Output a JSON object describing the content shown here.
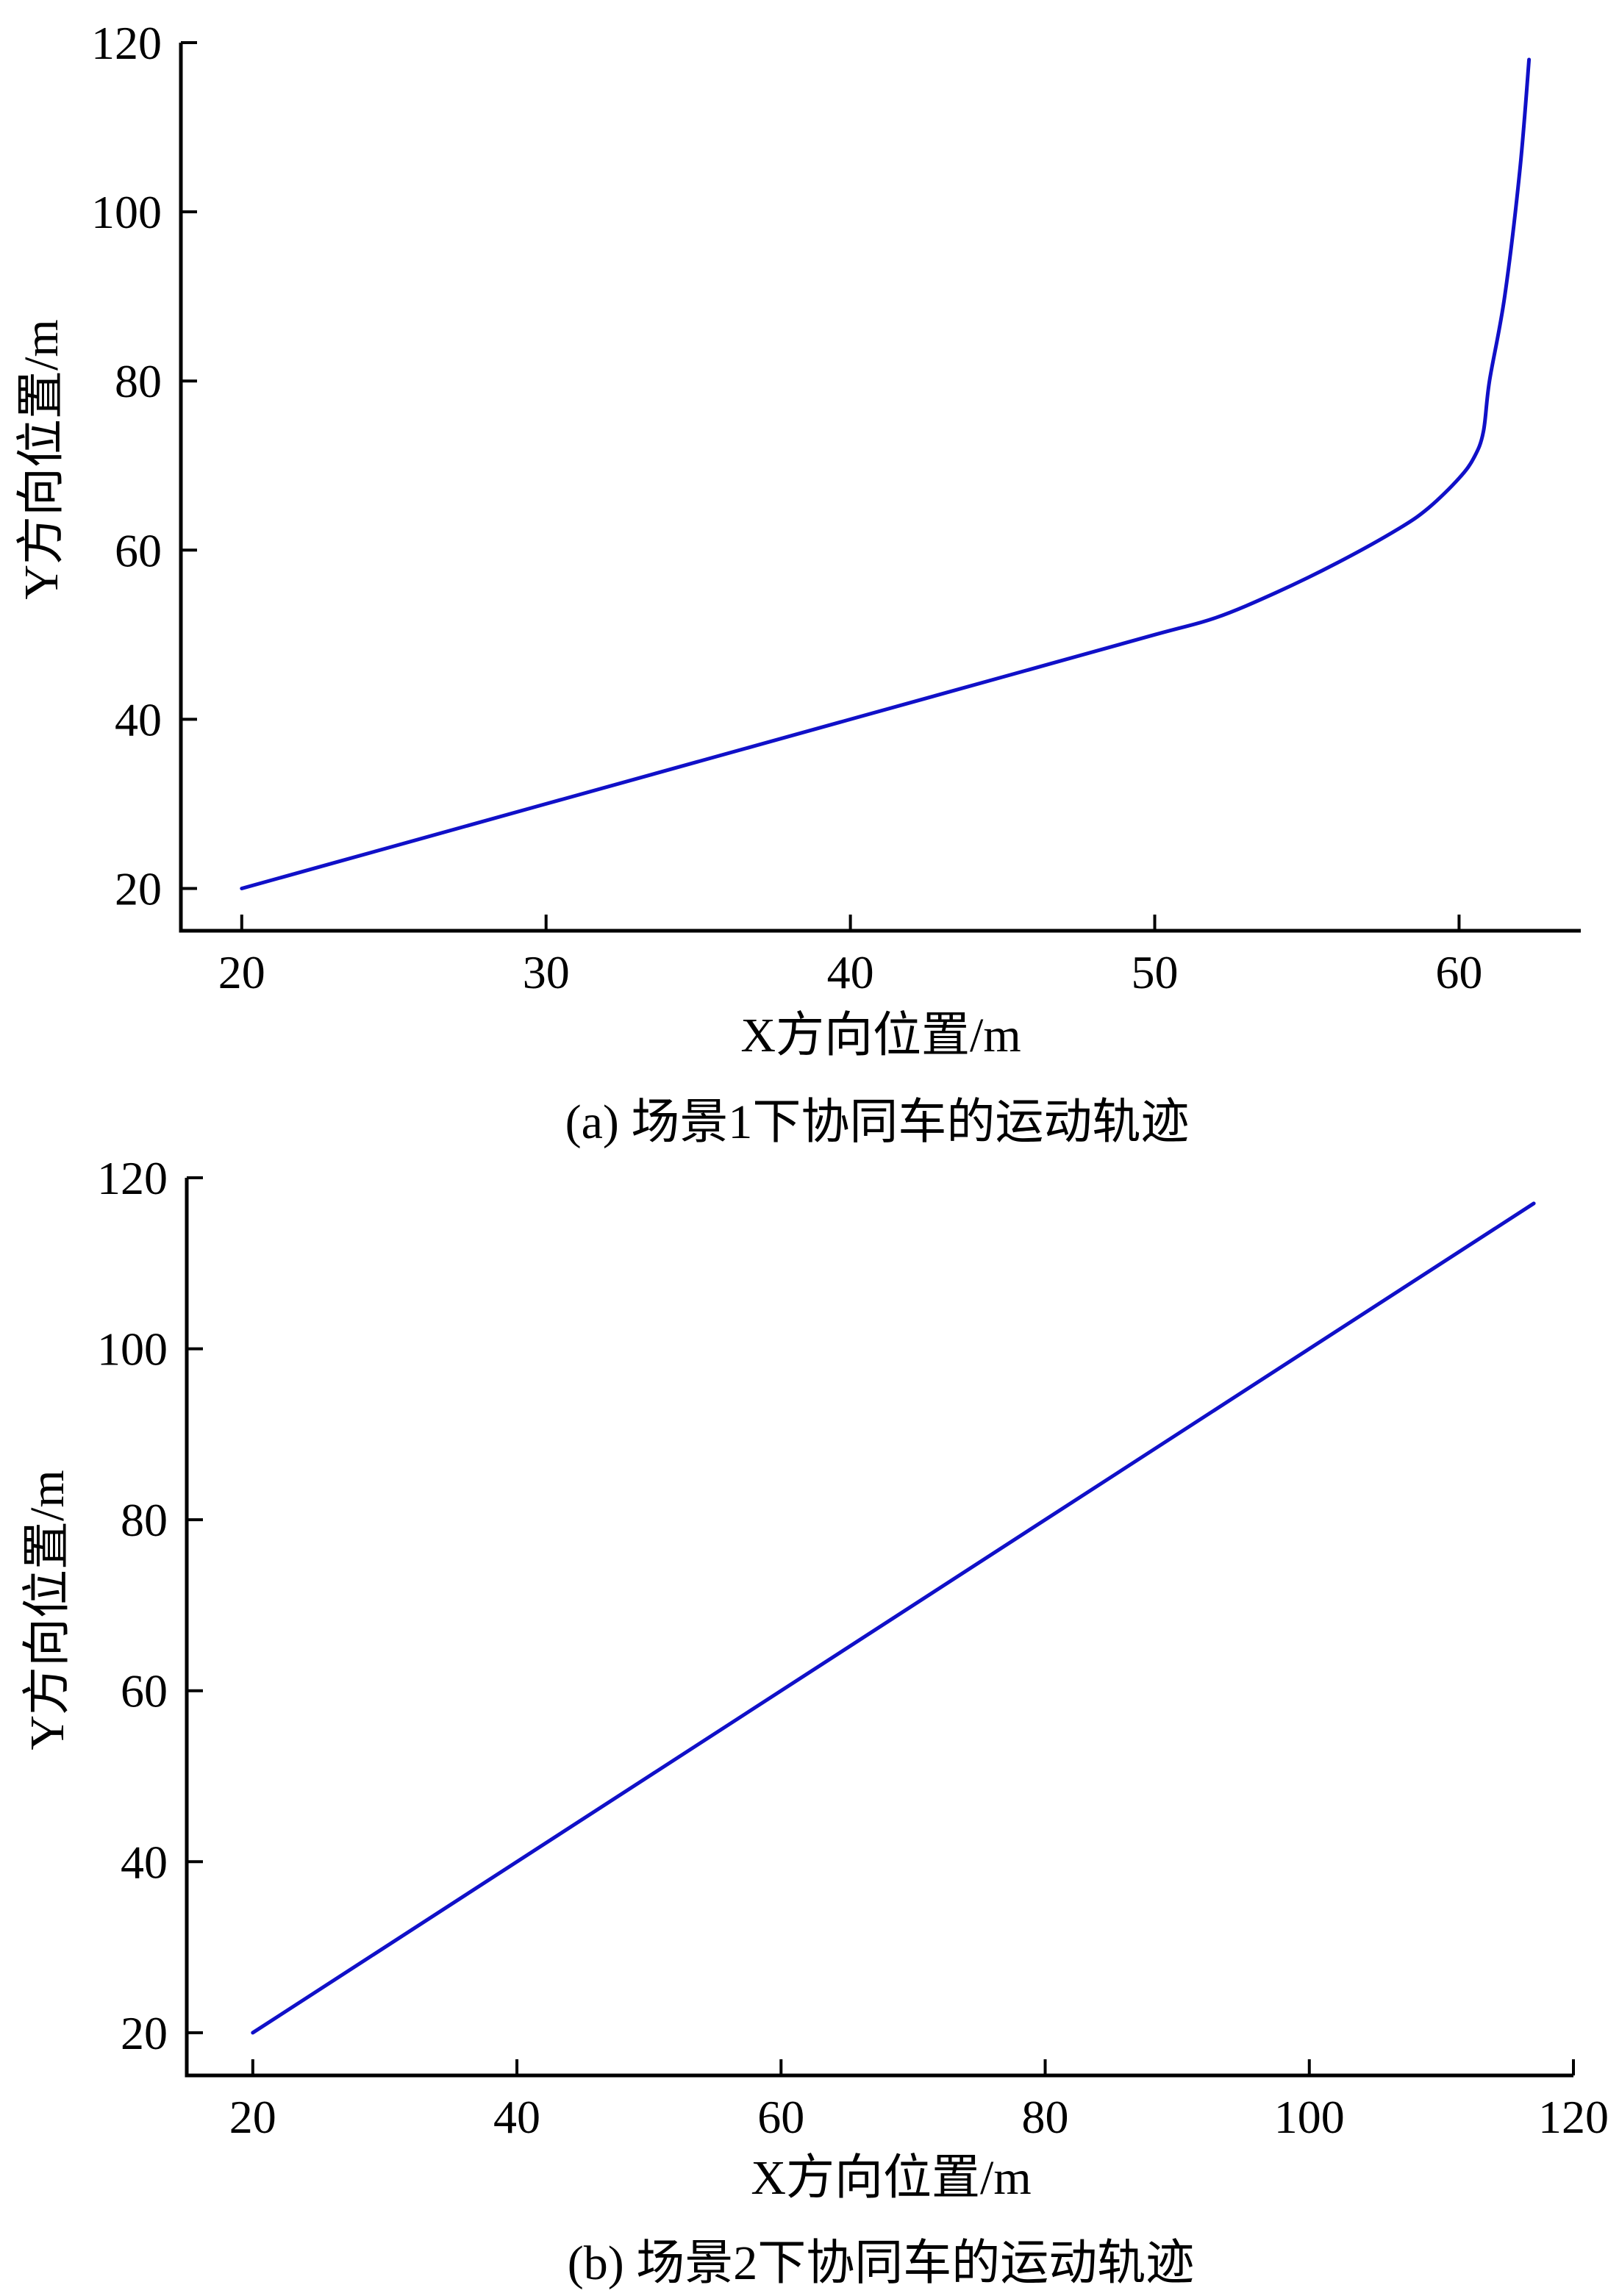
{
  "colors": {
    "series": "#1010c8",
    "axis": "#000000",
    "background": "#ffffff"
  },
  "chart_data": [
    {
      "type": "line",
      "caption": "(a) 场景1下协同车的运动轨迹",
      "xlabel": "X方向位置/m",
      "ylabel": "Y方向位置/m",
      "xlim": [
        18,
        64
      ],
      "ylim": [
        15,
        120
      ],
      "xticks": [
        20,
        30,
        40,
        50,
        60
      ],
      "yticks": [
        20,
        40,
        60,
        80,
        100,
        120
      ],
      "grid": false,
      "legend": "none",
      "series": [
        {
          "x": [
            20,
            25,
            30,
            35,
            40,
            45,
            50,
            52,
            54,
            56,
            58,
            59,
            60,
            60.5,
            60.8,
            61,
            61.5,
            62,
            62.3
          ],
          "y": [
            20,
            25,
            30,
            35,
            40,
            45,
            50,
            52,
            55,
            58.5,
            62.5,
            65,
            68.5,
            71,
            74,
            80,
            90,
            105,
            118
          ]
        }
      ]
    },
    {
      "type": "line",
      "caption": "(b) 场景2下协同车的运动轨迹",
      "xlabel": "X方向位置/m",
      "ylabel": "Y方向位置/m",
      "xlim": [
        15,
        120
      ],
      "ylim": [
        15,
        120
      ],
      "xticks": [
        20,
        40,
        60,
        80,
        100,
        120
      ],
      "yticks": [
        20,
        40,
        60,
        80,
        100,
        120
      ],
      "grid": false,
      "legend": "none",
      "series": [
        {
          "x": [
            20,
            117
          ],
          "y": [
            20,
            117
          ]
        }
      ]
    }
  ]
}
